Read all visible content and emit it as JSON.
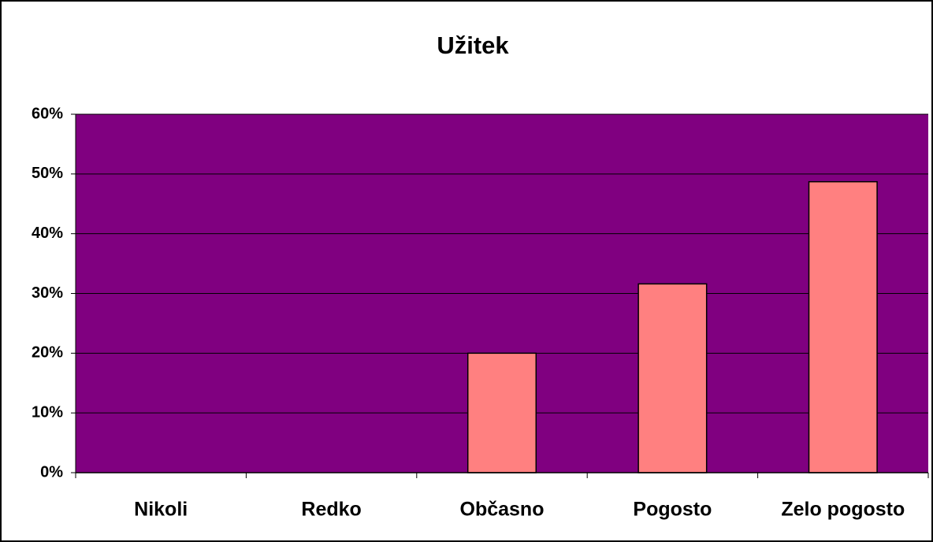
{
  "chart_data": {
    "type": "bar",
    "title": "Užitek",
    "categories": [
      "Nikoli",
      "Redko",
      "Občasno",
      "Pogosto",
      "Zelo pogosto"
    ],
    "values": [
      0,
      0,
      20,
      31.6,
      48.7
    ],
    "color": "#ff8080",
    "plot_background": "#800080",
    "ylim": [
      0,
      60
    ],
    "yticks": [
      {
        "value": 0,
        "label": "0%"
      },
      {
        "value": 10,
        "label": "10%"
      },
      {
        "value": 20,
        "label": "20%"
      },
      {
        "value": 30,
        "label": "30%"
      },
      {
        "value": 40,
        "label": "40%"
      },
      {
        "value": 50,
        "label": "50%"
      },
      {
        "value": 60,
        "label": "60%"
      }
    ],
    "grid": true
  }
}
